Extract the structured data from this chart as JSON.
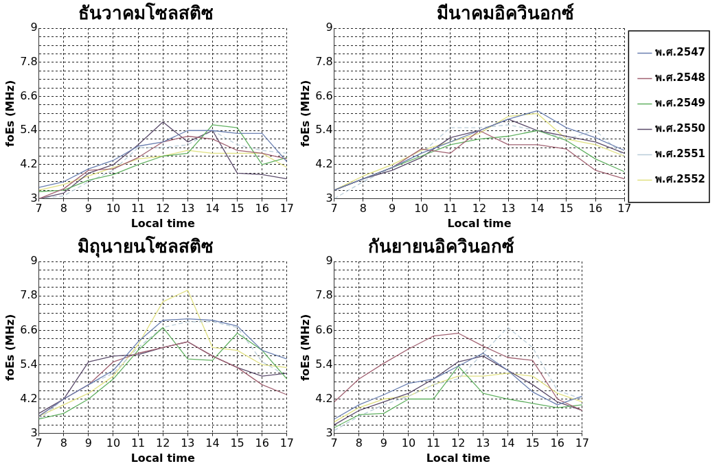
{
  "chart_data": [
    {
      "type": "line",
      "title": "ธันวาคมโซลสติซ",
      "xlabel": "Local time",
      "ylabel": "foEs (MHz)",
      "x": [
        7,
        8,
        9,
        10,
        11,
        12,
        13,
        14,
        15,
        16,
        17
      ],
      "xlim": [
        7,
        17
      ],
      "xticks": [
        7,
        8,
        9,
        10,
        11,
        12,
        13,
        14,
        15,
        16,
        17
      ],
      "ylim": [
        3,
        9
      ],
      "yticks": [
        3,
        {
          "value": 3.3,
          "label": null
        },
        {
          "value": 3.6,
          "label": null
        },
        {
          "value": 3.9,
          "label": null
        },
        4.2,
        {
          "value": 4.5,
          "label": null
        },
        {
          "value": 4.8,
          "label": null
        },
        {
          "value": 5.1,
          "label": null
        },
        5.4,
        {
          "value": 5.7,
          "label": null
        },
        {
          "value": 6,
          "label": null
        },
        {
          "value": 6.3,
          "label": null
        },
        6.6,
        {
          "value": 6.9,
          "label": null
        },
        {
          "value": 7.2,
          "label": null
        },
        {
          "value": 7.5,
          "label": null
        },
        7.8,
        {
          "value": 8.1,
          "label": null
        },
        {
          "value": 8.4,
          "label": null
        },
        {
          "value": 8.7,
          "label": null
        },
        9
      ],
      "grid": true,
      "marker": "none",
      "series": [
        {
          "color": "#6a7fb0",
          "values": [
            3.4,
            3.6,
            4.05,
            4.35,
            4.85,
            5.0,
            5.4,
            5.4,
            5.3,
            5.3,
            4.3
          ]
        },
        {
          "color": "#a06070",
          "values": [
            3.0,
            3.35,
            4.0,
            4.05,
            4.45,
            5.0,
            5.2,
            5.1,
            4.7,
            4.6,
            4.4
          ]
        },
        {
          "color": "#60b060",
          "values": [
            3.25,
            3.3,
            3.65,
            3.85,
            4.2,
            4.5,
            4.6,
            5.6,
            5.5,
            4.2,
            4.45
          ]
        },
        {
          "color": "#5a4a6a",
          "values": [
            3.0,
            3.2,
            3.9,
            4.2,
            4.9,
            5.7,
            5.0,
            5.4,
            3.9,
            3.85,
            3.7
          ]
        },
        {
          "color": "#b8ccd8",
          "line_style": "dashed",
          "values": [
            3.0,
            3.1,
            3.6,
            4.0,
            4.8,
            4.8,
            4.9,
            5.4,
            4.9,
            4.7,
            4.6
          ]
        },
        {
          "color": "#e0e080",
          "values": [
            3.3,
            3.5,
            3.8,
            4.1,
            4.4,
            4.5,
            4.7,
            4.6,
            4.6,
            4.6,
            4.1
          ]
        }
      ]
    },
    {
      "type": "line",
      "title": "มีนาคมอิควินอกซ์",
      "xlabel": "Local time",
      "ylabel": "foEs (MHz)",
      "x": [
        7,
        8,
        9,
        10,
        11,
        12,
        13,
        14,
        15,
        16,
        17
      ],
      "xlim": [
        7,
        17
      ],
      "xticks": [
        7,
        8,
        9,
        10,
        11,
        12,
        13,
        14,
        15,
        16,
        17
      ],
      "ylim": [
        3,
        9
      ],
      "yticks": [
        3,
        {
          "value": 3.3,
          "label": null
        },
        {
          "value": 3.6,
          "label": null
        },
        {
          "value": 3.9,
          "label": null
        },
        4.2,
        {
          "value": 4.5,
          "label": null
        },
        {
          "value": 4.8,
          "label": null
        },
        {
          "value": 5.1,
          "label": null
        },
        5.4,
        {
          "value": 5.7,
          "label": null
        },
        {
          "value": 6,
          "label": null
        },
        {
          "value": 6.3,
          "label": null
        },
        6.6,
        {
          "value": 6.9,
          "label": null
        },
        {
          "value": 7.2,
          "label": null
        },
        {
          "value": 7.5,
          "label": null
        },
        7.8,
        {
          "value": 8.1,
          "label": null
        },
        {
          "value": 8.4,
          "label": null
        },
        {
          "value": 8.7,
          "label": null
        },
        9
      ],
      "grid": true,
      "marker": "none",
      "legend": "right",
      "series": [
        {
          "name": "พ.ศ.2547",
          "color": "#6a7fb0",
          "values": [
            3.3,
            3.7,
            4.1,
            4.6,
            5.0,
            5.4,
            5.8,
            6.1,
            5.5,
            5.15,
            4.7
          ]
        },
        {
          "name": "พ.ศ.2548",
          "color": "#a06070",
          "values": [
            3.3,
            3.7,
            4.1,
            4.75,
            4.6,
            5.4,
            4.9,
            4.9,
            4.75,
            4.0,
            3.7
          ]
        },
        {
          "name": "พ.ศ.2549",
          "color": "#60b060",
          "values": [
            3.3,
            3.7,
            4.1,
            4.5,
            4.9,
            5.1,
            5.2,
            5.4,
            5.05,
            4.4,
            3.95
          ]
        },
        {
          "name": "พ.ศ.2550",
          "color": "#5a4a6a",
          "values": [
            3.3,
            3.7,
            4.0,
            4.45,
            5.15,
            5.4,
            5.8,
            5.4,
            5.2,
            5.0,
            4.6
          ]
        },
        {
          "name": "พ.ศ.2551",
          "color": "#b8ccd8",
          "line_style": "dashed",
          "values": [
            3.0,
            3.6,
            4.1,
            4.6,
            5.5,
            5.5,
            5.6,
            5.4,
            5.1,
            5.4,
            4.5
          ]
        },
        {
          "name": "พ.ศ.2552",
          "color": "#e0e080",
          "values": [
            3.3,
            3.8,
            4.2,
            4.7,
            5.0,
            5.3,
            5.9,
            6.0,
            5.1,
            4.9,
            4.5
          ]
        }
      ]
    },
    {
      "type": "line",
      "title": "มิถุนายนโซลสติซ",
      "xlabel": "Local time",
      "ylabel": "foEs (MHz)",
      "x": [
        7,
        8,
        9,
        10,
        11,
        12,
        13,
        14,
        15,
        16,
        17
      ],
      "xlim": [
        7,
        17
      ],
      "xticks": [
        7,
        8,
        9,
        10,
        11,
        12,
        13,
        14,
        15,
        16,
        17
      ],
      "ylim": [
        3,
        9
      ],
      "yticks": [
        3,
        {
          "value": 3.3,
          "label": null
        },
        {
          "value": 3.6,
          "label": null
        },
        {
          "value": 3.9,
          "label": null
        },
        4.2,
        {
          "value": 4.5,
          "label": null
        },
        {
          "value": 4.8,
          "label": null
        },
        {
          "value": 5.1,
          "label": null
        },
        5.4,
        {
          "value": 5.7,
          "label": null
        },
        {
          "value": 6,
          "label": null
        },
        {
          "value": 6.3,
          "label": null
        },
        6.6,
        {
          "value": 6.9,
          "label": null
        },
        {
          "value": 7.2,
          "label": null
        },
        {
          "value": 7.5,
          "label": null
        },
        7.8,
        {
          "value": 8.1,
          "label": null
        },
        {
          "value": 8.4,
          "label": null
        },
        {
          "value": 8.7,
          "label": null
        },
        9
      ],
      "grid": true,
      "marker": "none",
      "series": [
        {
          "color": "#6a7fb0",
          "values": [
            3.6,
            4.2,
            4.7,
            5.2,
            6.2,
            6.95,
            7.0,
            6.95,
            6.75,
            5.9,
            5.6
          ]
        },
        {
          "color": "#a06070",
          "values": [
            3.6,
            4.2,
            4.7,
            5.5,
            5.8,
            6.0,
            6.2,
            5.7,
            5.3,
            4.7,
            4.35
          ]
        },
        {
          "color": "#60b060",
          "values": [
            3.5,
            3.7,
            4.2,
            4.9,
            5.9,
            6.7,
            5.6,
            5.55,
            6.5,
            5.9,
            4.9
          ]
        },
        {
          "color": "#5a4a6a",
          "values": [
            3.7,
            4.2,
            5.5,
            5.7,
            5.75,
            6.0,
            6.2,
            5.7,
            5.3,
            5.0,
            5.1
          ]
        },
        {
          "color": "#b8ccd8",
          "line_style": "dashed",
          "values": [
            3.5,
            4.2,
            4.7,
            5.1,
            6.0,
            6.7,
            6.9,
            6.9,
            6.7,
            5.5,
            5.0
          ]
        },
        {
          "color": "#e0e080",
          "values": [
            3.6,
            4.0,
            4.4,
            5.0,
            6.1,
            7.6,
            8.0,
            6.0,
            5.9,
            5.4,
            5.3
          ]
        }
      ]
    },
    {
      "type": "line",
      "title": "กันยายนอิควินอกซ์",
      "xlabel": "Local time",
      "ylabel": "foEs (MHz)",
      "x": [
        7,
        8,
        9,
        10,
        11,
        12,
        13,
        14,
        15,
        16,
        17
      ],
      "xlim": [
        7,
        17
      ],
      "xticks": [
        7,
        8,
        9,
        10,
        11,
        12,
        13,
        14,
        15,
        16,
        17
      ],
      "ylim": [
        3,
        9
      ],
      "yticks": [
        3,
        {
          "value": 3.3,
          "label": null
        },
        {
          "value": 3.6,
          "label": null
        },
        {
          "value": 3.9,
          "label": null
        },
        4.2,
        {
          "value": 4.5,
          "label": null
        },
        {
          "value": 4.8,
          "label": null
        },
        {
          "value": 5.1,
          "label": null
        },
        5.4,
        {
          "value": 5.7,
          "label": null
        },
        {
          "value": 6,
          "label": null
        },
        {
          "value": 6.3,
          "label": null
        },
        6.6,
        {
          "value": 6.9,
          "label": null
        },
        {
          "value": 7.2,
          "label": null
        },
        {
          "value": 7.5,
          "label": null
        },
        7.8,
        {
          "value": 8.1,
          "label": null
        },
        {
          "value": 8.4,
          "label": null
        },
        {
          "value": 8.7,
          "label": null
        },
        9
      ],
      "grid": true,
      "marker": "none",
      "series": [
        {
          "color": "#6a7fb0",
          "values": [
            3.5,
            4.0,
            4.35,
            4.75,
            4.9,
            5.35,
            5.8,
            5.2,
            4.45,
            4.0,
            4.3
          ]
        },
        {
          "color": "#a06070",
          "values": [
            4.1,
            4.9,
            5.45,
            5.95,
            6.4,
            6.5,
            6.05,
            5.65,
            5.55,
            4.2,
            3.8
          ]
        },
        {
          "color": "#60b060",
          "values": [
            3.2,
            3.65,
            3.7,
            4.2,
            4.2,
            5.35,
            4.4,
            4.2,
            4.05,
            3.9,
            4.0
          ]
        },
        {
          "color": "#5a4a6a",
          "values": [
            3.3,
            3.8,
            4.1,
            4.4,
            4.9,
            5.5,
            5.7,
            5.2,
            4.7,
            4.1,
            3.8
          ]
        },
        {
          "color": "#b8ccd8",
          "line_style": "dashed",
          "values": [
            3.1,
            3.6,
            4.0,
            4.3,
            4.7,
            4.9,
            5.8,
            6.7,
            6.0,
            4.5,
            4.2
          ]
        },
        {
          "color": "#e0e080",
          "values": [
            3.4,
            3.9,
            4.2,
            4.3,
            4.7,
            5.0,
            5.0,
            5.1,
            5.0,
            4.4,
            4.1
          ]
        }
      ]
    }
  ]
}
